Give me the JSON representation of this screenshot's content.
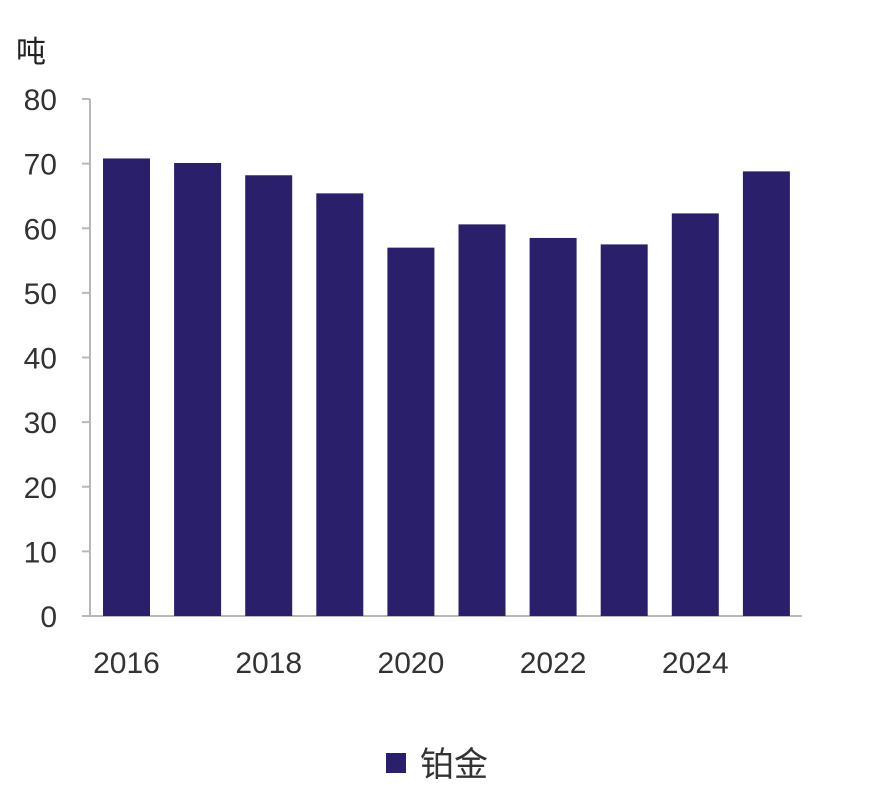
{
  "chart_data": {
    "type": "bar",
    "unit_label": "吨",
    "x": [
      2016,
      2017,
      2018,
      2019,
      2020,
      2021,
      2022,
      2023,
      2024,
      2025
    ],
    "x_tick_labels": [
      "2016",
      "2018",
      "2020",
      "2022",
      "2024"
    ],
    "series": [
      {
        "name": "铂金",
        "color": "#2a1f6b",
        "values": [
          70.8,
          70.1,
          68.2,
          65.4,
          57.0,
          60.6,
          58.5,
          57.5,
          62.3,
          68.8
        ]
      }
    ],
    "ylim": [
      0,
      80
    ],
    "y_ticks": [
      0,
      10,
      20,
      30,
      40,
      50,
      60,
      70,
      80
    ],
    "grid": false,
    "legend_position": "bottom-center"
  }
}
